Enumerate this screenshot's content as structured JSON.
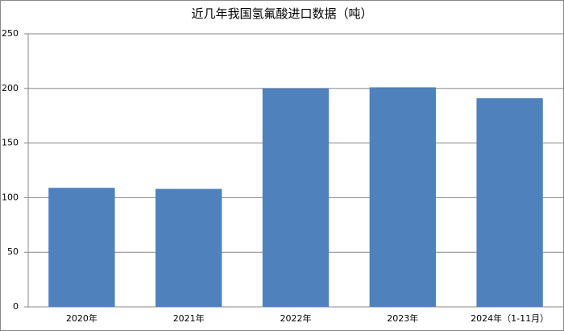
{
  "chart_data": {
    "type": "bar",
    "title": "近几年我国氢氟酸进口数据（吨）",
    "categories": [
      "2020年",
      "2021年",
      "2022年",
      "2023年",
      "2024年（1-11月）"
    ],
    "values": [
      109,
      108,
      200,
      201,
      191
    ],
    "color": "#4f81bd",
    "ylim": [
      0,
      250
    ],
    "yticks": [
      0,
      50,
      100,
      150,
      200,
      250
    ],
    "grid": true
  }
}
